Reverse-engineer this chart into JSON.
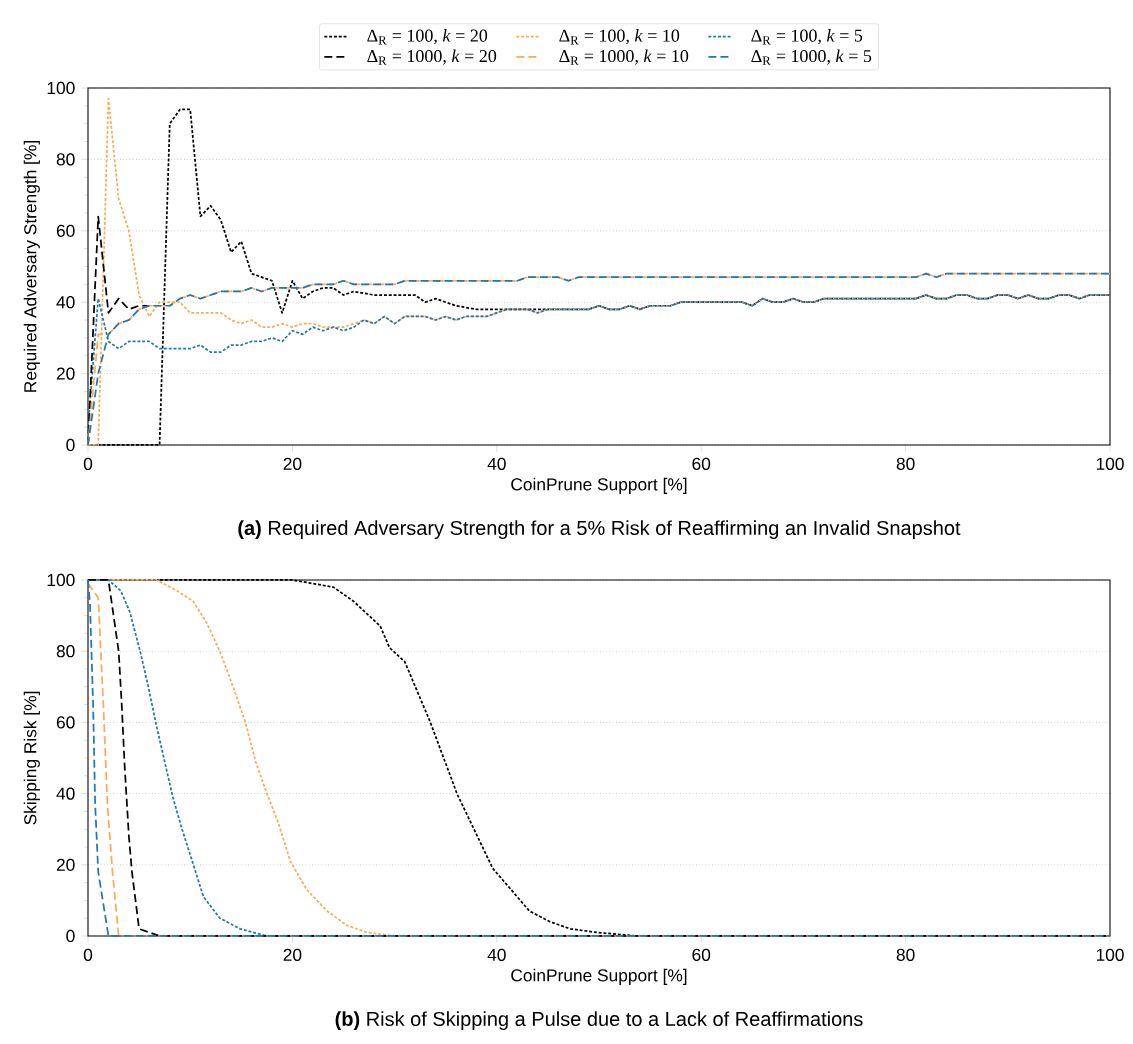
{
  "chart_data": [
    {
      "type": "line",
      "xlabel": "CoinPrune Support [%]",
      "ylabel": "Required Adversary Strength [%]",
      "annotations": [
        "**(a)** Required Adversary Strength for a 5% Risk of Reaffirming an Invalid Snapshot"
      ],
      "xlim": [
        0,
        100
      ],
      "ylim": [
        0,
        100
      ],
      "xticks": [
        0,
        20,
        40,
        60,
        80,
        100
      ],
      "yticks": [
        0,
        {
          "value": 5,
          "label": null
        },
        {
          "value": 10,
          "label": null
        },
        {
          "value": 15,
          "label": null
        },
        20,
        {
          "value": 25,
          "label": null
        },
        {
          "value": 30,
          "label": null
        },
        {
          "value": 35,
          "label": null
        },
        40,
        {
          "value": 45,
          "label": null
        },
        {
          "value": 50,
          "label": null
        },
        {
          "value": 55,
          "label": null
        },
        60,
        {
          "value": 65,
          "label": null
        },
        {
          "value": 70,
          "label": null
        },
        {
          "value": 75,
          "label": null
        },
        80,
        {
          "value": 85,
          "label": null
        },
        {
          "value": 90,
          "label": null
        },
        {
          "value": 95,
          "label": null
        },
        100
      ],
      "grid": "y",
      "legend": "top",
      "series": [
        {
          "name": "Δ$_{R}$ = 100, *k* = 20",
          "color": "#000000",
          "line_style": "dotted",
          "x": [
            0,
            7,
            8,
            9,
            10,
            11,
            12,
            13,
            14,
            15,
            16,
            18,
            19,
            20,
            21,
            22,
            23,
            24,
            25,
            26,
            28,
            30,
            32,
            33,
            34,
            36,
            38,
            44,
            45,
            49,
            50,
            51,
            52,
            53,
            54,
            55,
            57,
            58,
            64,
            65,
            66,
            67,
            68,
            69,
            70,
            71,
            72,
            81,
            82,
            83,
            84,
            85,
            86,
            87,
            88,
            89,
            90,
            91,
            92,
            93,
            94,
            95,
            96,
            97,
            98,
            100
          ],
          "values": [
            0,
            0,
            90,
            94,
            94,
            64,
            67,
            63,
            54,
            57,
            48,
            46,
            37,
            46,
            41,
            43,
            44,
            44,
            42,
            43,
            42,
            42,
            42,
            40,
            41,
            39,
            38,
            38,
            38,
            38,
            39,
            38,
            38,
            39,
            38,
            39,
            39,
            40,
            40,
            39,
            41,
            40,
            40,
            41,
            40,
            40,
            41,
            41,
            42,
            41,
            41,
            42,
            42,
            41,
            41,
            42,
            42,
            41,
            42,
            41,
            41,
            42,
            42,
            41,
            42,
            42
          ]
        },
        {
          "name": "Δ$_{R}$ = 100, *k* = 10",
          "color": "#ffaa55",
          "line_style": "dotted",
          "x": [
            0,
            1,
            2,
            3,
            4,
            5,
            6,
            7,
            9,
            10,
            13,
            14,
            15,
            16,
            17,
            18,
            19,
            20,
            21,
            22,
            23,
            25,
            26,
            27,
            28,
            29,
            30,
            31,
            33,
            34,
            35,
            36,
            37,
            39,
            40,
            41,
            43,
            44,
            45,
            49,
            50,
            51,
            52,
            53,
            54,
            55,
            57,
            58,
            64,
            65,
            66,
            67,
            68,
            69,
            70,
            71,
            72,
            81,
            82,
            83,
            84,
            85,
            86,
            87,
            88,
            89,
            90,
            91,
            92,
            93,
            94,
            95,
            96,
            97,
            98,
            100
          ],
          "values": [
            0,
            0,
            97,
            69,
            60,
            42,
            36,
            40,
            40,
            37,
            37,
            35,
            34,
            35,
            33,
            33,
            34,
            33,
            34,
            34,
            33,
            33,
            34,
            35,
            34,
            36,
            34,
            36,
            36,
            35,
            36,
            35,
            36,
            36,
            37,
            38,
            38,
            37,
            38,
            38,
            39,
            38,
            38,
            39,
            38,
            39,
            39,
            40,
            40,
            39,
            41,
            40,
            40,
            41,
            40,
            40,
            41,
            41,
            42,
            41,
            41,
            42,
            42,
            41,
            41,
            42,
            42,
            41,
            42,
            41,
            41,
            42,
            42,
            41,
            42,
            42
          ]
        },
        {
          "name": "Δ$_{R}$ = 100, *k* = 5",
          "color": "#1f77b4",
          "line_style": "dotted",
          "x": [
            0,
            1,
            2,
            3,
            4,
            6,
            7,
            10,
            11,
            12,
            13,
            14,
            15,
            16,
            17,
            18,
            19,
            20,
            21,
            22,
            23,
            24,
            25,
            26,
            27,
            28,
            29,
            30,
            31,
            33,
            34,
            35,
            36,
            37,
            39,
            40,
            41,
            43,
            44,
            45,
            49,
            50,
            51,
            52,
            53,
            54,
            55,
            57,
            58,
            64,
            65,
            66,
            67,
            68,
            69,
            70,
            71,
            72,
            81,
            82,
            83,
            84,
            85,
            86,
            87,
            88,
            89,
            90,
            91,
            92,
            93,
            94,
            95,
            96,
            97,
            98,
            100
          ],
          "values": [
            5,
            41,
            29,
            27,
            29,
            29,
            27,
            27,
            28,
            26,
            26,
            28,
            28,
            29,
            29,
            30,
            29,
            32,
            31,
            33,
            32,
            33,
            32,
            33,
            35,
            34,
            36,
            34,
            36,
            36,
            35,
            36,
            35,
            36,
            36,
            37,
            38,
            38,
            37,
            38,
            38,
            39,
            38,
            38,
            39,
            38,
            39,
            39,
            40,
            40,
            39,
            41,
            40,
            40,
            41,
            40,
            40,
            41,
            41,
            42,
            41,
            41,
            42,
            42,
            41,
            41,
            42,
            42,
            41,
            42,
            41,
            41,
            42,
            42,
            41,
            42,
            42
          ]
        },
        {
          "name": "Δ$_{R}$ = 1000, *k* = 20",
          "color": "#000000",
          "line_style": "dashed",
          "x": [
            0,
            1,
            2,
            3,
            4,
            5,
            6
          ],
          "values": [
            0,
            64,
            37,
            41,
            38,
            39,
            39
          ]
        },
        {
          "name": "Δ$_{R}$ = 1000, *k* = 10",
          "color": "#ffaa55",
          "line_style": "dashed",
          "x": [
            0,
            1,
            2,
            3,
            4,
            5,
            6,
            8,
            9,
            10,
            11,
            12,
            13,
            15,
            16,
            17,
            18,
            21,
            22,
            24,
            25,
            26,
            30,
            31,
            42,
            43,
            46,
            47,
            48,
            81,
            82,
            83,
            84,
            100
          ],
          "values": [
            0,
            31,
            31,
            34,
            35,
            38,
            39,
            39,
            41,
            42,
            41,
            42,
            43,
            43,
            44,
            43,
            44,
            44,
            45,
            45,
            46,
            45,
            45,
            46,
            46,
            47,
            47,
            46,
            47,
            47,
            48,
            47,
            48,
            48
          ]
        },
        {
          "name": "Δ$_{R}$ = 1000, *k* = 5",
          "color": "#1f77b4",
          "line_style": "dashed",
          "x": [
            0,
            1,
            2,
            3,
            4,
            5,
            6,
            8,
            9,
            10,
            11,
            12,
            13,
            15,
            16,
            17,
            18,
            21,
            22,
            24,
            25,
            26,
            30,
            31,
            42,
            43,
            46,
            47,
            48,
            81,
            82,
            83,
            84,
            100
          ],
          "values": [
            0,
            20,
            31,
            34,
            35,
            38,
            39,
            39,
            41,
            42,
            41,
            42,
            43,
            43,
            44,
            43,
            44,
            44,
            45,
            45,
            46,
            45,
            45,
            46,
            46,
            47,
            47,
            46,
            47,
            47,
            48,
            47,
            48,
            48
          ]
        }
      ]
    },
    {
      "type": "line",
      "xlabel": "CoinPrune Support [%]",
      "ylabel": "Skipping Risk [%]",
      "annotations": [
        "**(b)** Risk of Skipping a Pulse due to a Lack of Reaffirmations"
      ],
      "xlim": [
        0,
        100
      ],
      "ylim": [
        0,
        100
      ],
      "xticks": [
        0,
        20,
        40,
        60,
        80,
        100
      ],
      "yticks": [
        0,
        {
          "value": 5,
          "label": null
        },
        {
          "value": 10,
          "label": null
        },
        {
          "value": 15,
          "label": null
        },
        20,
        {
          "value": 25,
          "label": null
        },
        {
          "value": 30,
          "label": null
        },
        {
          "value": 35,
          "label": null
        },
        40,
        {
          "value": 45,
          "label": null
        },
        {
          "value": 50,
          "label": null
        },
        {
          "value": 55,
          "label": null
        },
        60,
        {
          "value": 65,
          "label": null
        },
        {
          "value": 70,
          "label": null
        },
        {
          "value": 75,
          "label": null
        },
        80,
        {
          "value": 85,
          "label": null
        },
        {
          "value": 90,
          "label": null
        },
        {
          "value": 95,
          "label": null
        },
        100
      ],
      "grid": "y",
      "series": [
        {
          "color": "#000000",
          "line_style": "dotted",
          "x": [
            0,
            20,
            22,
            24,
            26,
            28.6,
            29.5,
            31,
            33.5,
            36.1,
            39.6,
            43.2,
            45.2,
            47.2,
            49.8,
            53.7,
            100
          ],
          "values": [
            100,
            100,
            99,
            98,
            94,
            87,
            81,
            77,
            60,
            40,
            19,
            7,
            4,
            2,
            1,
            0,
            0
          ]
        },
        {
          "color": "#ffaa55",
          "line_style": "dotted",
          "x": [
            0,
            6.7,
            8.7,
            10.3,
            11.6,
            12.9,
            14.2,
            15.4,
            16.4,
            17.5,
            18.6,
            19.8,
            21.4,
            23.4,
            25.3,
            27.3,
            30,
            33,
            100
          ],
          "values": [
            100,
            100,
            97,
            94,
            88,
            80,
            70,
            60,
            49,
            40,
            32,
            21,
            13,
            7,
            3,
            1,
            0,
            0,
            0
          ]
        },
        {
          "color": "#1f77b4",
          "line_style": "dotted",
          "x": [
            0,
            2,
            3.2,
            4.1,
            5.1,
            5.9,
            6.7,
            7.5,
            8.3,
            9.2,
            10.2,
            11.3,
            12.9,
            14.9,
            17.5,
            20,
            100
          ],
          "values": [
            100,
            100,
            97,
            91,
            80,
            70,
            59,
            49,
            39,
            30,
            21,
            11,
            5,
            2,
            0,
            0,
            0
          ]
        },
        {
          "color": "#000000",
          "line_style": "dashed",
          "x": [
            0,
            2,
            3,
            3.3,
            3.6,
            4,
            4.3,
            5,
            6,
            7,
            100
          ],
          "values": [
            100,
            100,
            80,
            65,
            47,
            28,
            18,
            2,
            1,
            0,
            0
          ]
        },
        {
          "color": "#ffaa55",
          "line_style": "dashed",
          "x": [
            0,
            1,
            1.5,
            1.9,
            2.4,
            3,
            100
          ],
          "values": [
            99,
            95,
            65,
            37,
            18,
            0,
            0
          ]
        },
        {
          "color": "#1f77b4",
          "line_style": "dashed",
          "x": [
            0,
            0.2,
            0.5,
            0.7,
            1,
            2,
            100
          ],
          "values": [
            100,
            93,
            65,
            37,
            18,
            0,
            0
          ]
        }
      ]
    }
  ]
}
